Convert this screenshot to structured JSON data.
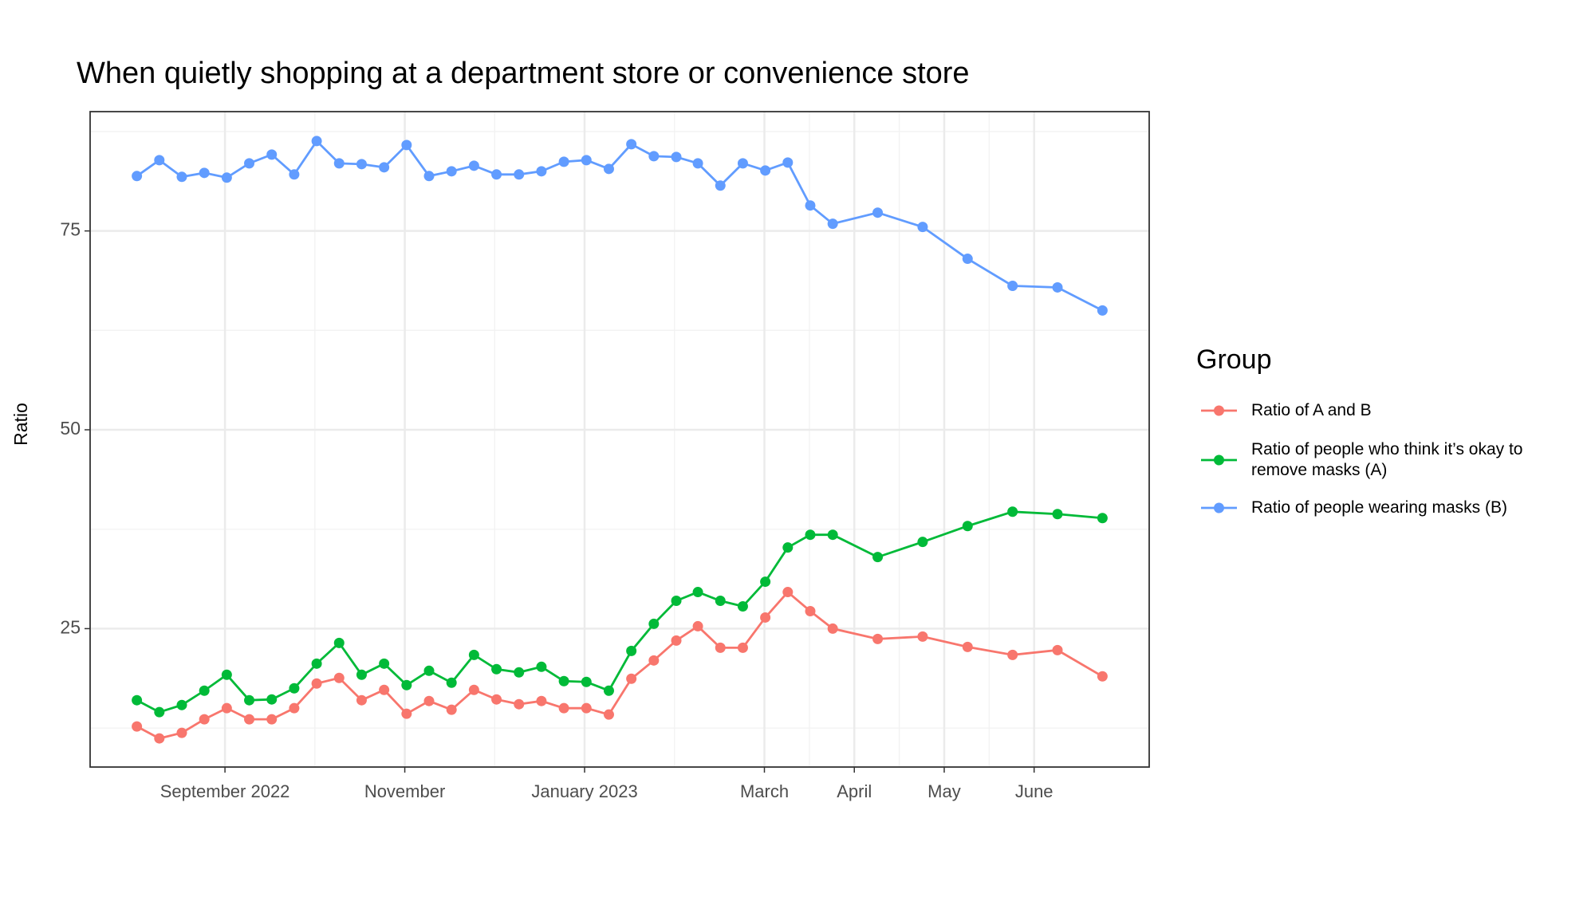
{
  "chart_data": {
    "type": "line",
    "title": "When quietly shopping at a department store or convenience store",
    "y_label": "Ratio",
    "legend_title": "Group",
    "legend_position": "right",
    "grid": true,
    "x": [
      8.02,
      8.27,
      8.52,
      8.77,
      9.02,
      9.27,
      9.52,
      9.77,
      10.02,
      10.27,
      10.52,
      10.77,
      11.02,
      11.27,
      11.52,
      11.77,
      12.02,
      12.27,
      12.52,
      12.77,
      13.02,
      13.27,
      13.52,
      13.77,
      14.02,
      14.26,
      14.51,
      14.76,
      15.01,
      15.26,
      15.51,
      15.76,
      16.26,
      16.76,
      17.26,
      17.76,
      18.26,
      18.76
    ],
    "xlim": [
      7.5,
      19.28
    ],
    "xticks": [
      {
        "value": 9,
        "label": "September 2022"
      },
      {
        "value": 11,
        "label": "November"
      },
      {
        "value": 13,
        "label": "January 2023"
      },
      {
        "value": 15,
        "label": "March"
      },
      {
        "value": 16,
        "label": "April"
      },
      {
        "value": 17,
        "label": "May"
      },
      {
        "value": 18,
        "label": "June"
      }
    ],
    "ylim": [
      7.6,
      90
    ],
    "yticks": [
      25,
      50,
      75
    ],
    "minor_yticks": [
      12.5,
      37.5,
      62.5,
      87.5
    ],
    "series": [
      {
        "name": "Ratio of A and B",
        "color": "#F8766D",
        "values": [
          12.7,
          11.2,
          11.9,
          13.6,
          15.0,
          13.6,
          13.6,
          15.0,
          18.1,
          18.8,
          16.0,
          17.3,
          14.3,
          15.9,
          14.8,
          17.3,
          16.1,
          15.5,
          15.9,
          15.0,
          15.0,
          14.2,
          18.7,
          21.0,
          23.5,
          25.3,
          22.6,
          22.6,
          26.4,
          29.6,
          27.2,
          25.0,
          23.7,
          24.0,
          22.7,
          21.7,
          22.3,
          19.0
        ]
      },
      {
        "name": "Ratio of people who think it’s okay to remove masks (A)",
        "color": "#00BA38",
        "values": [
          16.0,
          14.5,
          15.4,
          17.2,
          19.2,
          16.0,
          16.1,
          17.5,
          20.6,
          23.2,
          19.2,
          20.6,
          17.9,
          19.7,
          18.2,
          21.7,
          19.9,
          19.5,
          20.2,
          18.4,
          18.3,
          17.2,
          22.2,
          25.6,
          28.5,
          29.6,
          28.5,
          27.8,
          30.9,
          35.2,
          36.8,
          36.8,
          34.0,
          35.9,
          37.9,
          39.7,
          39.4,
          38.9
        ]
      },
      {
        "name": "Ratio of people wearing masks (B)",
        "color": "#619CFF",
        "values": [
          81.9,
          83.9,
          81.8,
          82.3,
          81.7,
          83.5,
          84.6,
          82.1,
          86.3,
          83.5,
          83.4,
          83.0,
          85.8,
          81.9,
          82.5,
          83.2,
          82.1,
          82.1,
          82.5,
          83.7,
          83.9,
          82.8,
          85.9,
          84.4,
          84.3,
          83.5,
          80.7,
          83.5,
          82.6,
          83.6,
          78.2,
          75.9,
          77.3,
          75.5,
          71.5,
          68.1,
          67.9,
          65.0
        ]
      }
    ]
  }
}
